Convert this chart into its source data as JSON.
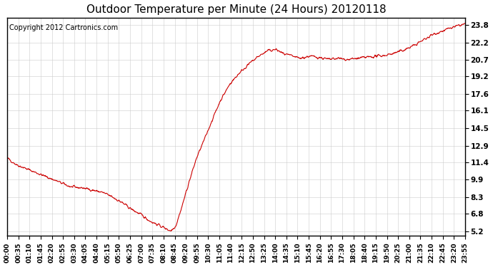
{
  "title": "Outdoor Temperature per Minute (24 Hours) 20120118",
  "copyright_text": "Copyright 2012 Cartronics.com",
  "line_color": "#cc0000",
  "bg_color": "#ffffff",
  "plot_bg_color": "#ffffff",
  "grid_color": "#cccccc",
  "yticks": [
    5.2,
    6.8,
    8.3,
    9.9,
    11.4,
    12.9,
    14.5,
    16.1,
    17.6,
    19.2,
    20.7,
    22.2,
    23.8
  ],
  "ylim": [
    4.8,
    24.5
  ],
  "xtick_labels": [
    "00:00",
    "00:35",
    "01:10",
    "01:45",
    "02:20",
    "02:55",
    "03:30",
    "04:05",
    "04:40",
    "05:15",
    "05:50",
    "06:25",
    "07:00",
    "07:35",
    "08:10",
    "08:45",
    "09:20",
    "09:55",
    "10:30",
    "11:05",
    "11:40",
    "12:15",
    "12:50",
    "13:25",
    "14:00",
    "14:35",
    "15:10",
    "15:45",
    "16:20",
    "16:55",
    "17:30",
    "18:05",
    "18:40",
    "19:15",
    "19:50",
    "20:25",
    "21:00",
    "21:35",
    "22:10",
    "22:45",
    "23:20",
    "23:55"
  ],
  "control_t": [
    0,
    30,
    90,
    150,
    200,
    240,
    270,
    300,
    330,
    360,
    390,
    420,
    450,
    480,
    505,
    515,
    530,
    550,
    570,
    595,
    620,
    645,
    670,
    700,
    730,
    760,
    790,
    820,
    845,
    870,
    895,
    920,
    950,
    980,
    1010,
    1040,
    1070,
    1100,
    1130,
    1160,
    1190,
    1220,
    1250,
    1280,
    1310,
    1340,
    1370,
    1400,
    1430,
    1439
  ],
  "control_v": [
    11.8,
    11.2,
    10.5,
    9.8,
    9.2,
    9.1,
    8.9,
    8.7,
    8.3,
    7.8,
    7.2,
    6.7,
    6.1,
    5.7,
    5.35,
    5.25,
    5.7,
    7.5,
    9.5,
    11.8,
    13.5,
    15.3,
    17.0,
    18.5,
    19.5,
    20.3,
    21.0,
    21.5,
    21.6,
    21.2,
    21.0,
    20.8,
    21.0,
    20.9,
    20.7,
    20.8,
    20.7,
    20.8,
    20.9,
    21.0,
    21.1,
    21.3,
    21.6,
    22.0,
    22.5,
    23.0,
    23.3,
    23.6,
    23.85,
    23.9
  ]
}
